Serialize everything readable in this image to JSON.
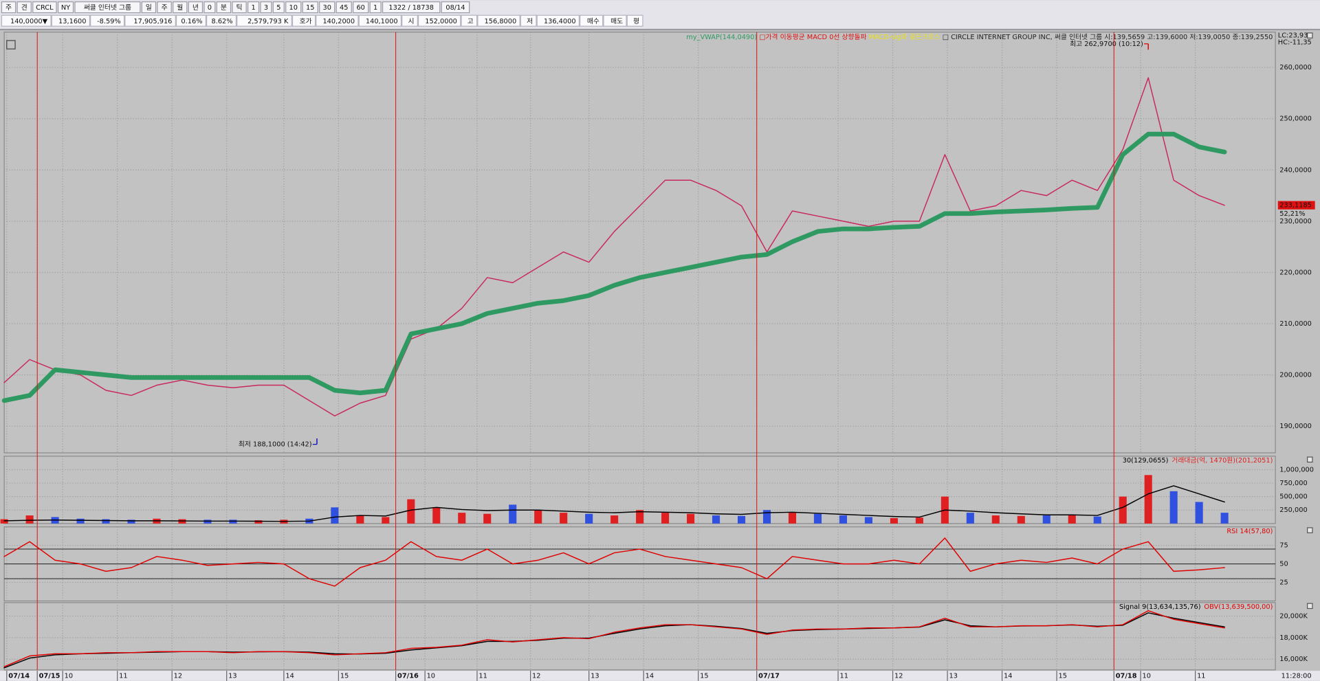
{
  "toolbar": {
    "row1": [
      "주",
      "견",
      "CRCL",
      "NY",
      "써클 인터넷 그룹",
      "일",
      "주",
      "월",
      "년",
      "0",
      "분",
      "틱",
      "1",
      "3",
      "5",
      "10",
      "15",
      "30",
      "45",
      "60",
      "1",
      "1322 / 18738",
      "08/14"
    ],
    "row2": [
      {
        "text": "140,0000▼",
        "color": "#1030d0"
      },
      {
        "text": "13,1600",
        "color": "#1030d0"
      },
      {
        "text": "-8.59%",
        "color": "#1030d0"
      },
      {
        "text": "17,905,916",
        "color": "#111111"
      },
      {
        "text": "0.16%",
        "color": "#d01010"
      },
      {
        "text": "8.62%",
        "color": "#111111"
      },
      {
        "text": "2,579,793 K",
        "color": "#111111"
      },
      {
        "text": "호가",
        "color": "#111111"
      },
      {
        "text": "140,2000",
        "color": "#1030d0"
      },
      {
        "text": "140,1000",
        "color": "#1030d0"
      },
      {
        "text": "시",
        "color": "#111111"
      },
      {
        "text": "152,0000",
        "color": "#d01010"
      },
      {
        "text": "고",
        "color": "#111111"
      },
      {
        "text": "156,8000",
        "color": "#d01010"
      },
      {
        "text": "저",
        "color": "#111111"
      },
      {
        "text": "136,4000",
        "color": "#1030d0"
      },
      {
        "text": "매수",
        "color": "#111111"
      },
      {
        "text": "매도",
        "color": "#111111"
      },
      {
        "text": "평",
        "color": "#111111"
      }
    ]
  },
  "chart_data": [
    {
      "type": "line",
      "legend": [
        {
          "text": "my_VWAP(144,0490)",
          "color": "#2e9a62"
        },
        {
          "text": " □가격 이동평균 MACD 0선 상향돌파 ",
          "color": "#e01010"
        },
        {
          "text": " MACD-sig와 골든크로스 ",
          "color": "#e8e020"
        },
        {
          "text": " □ CIRCLE INTERNET GROUP INC,  써클 인터넷 그룹 시:139,5659 고:139,6000 저:139,0050 종:139,2550",
          "color": "#222222"
        }
      ],
      "lc": "LC:23,93",
      "hc": "HC:-11,35",
      "x": [
        0,
        2,
        4,
        6,
        8,
        10,
        12,
        14,
        16,
        18,
        20,
        22,
        24,
        26,
        28,
        30,
        32,
        34,
        36,
        38,
        40,
        42,
        44,
        46,
        48,
        50,
        52,
        54,
        56,
        58,
        60,
        62,
        64,
        66,
        68,
        70,
        72,
        74,
        76,
        78,
        80,
        82,
        84,
        86,
        88,
        90,
        92,
        94,
        96
      ],
      "xlim": [
        0,
        100
      ],
      "xticks": [
        {
          "value": 0.2,
          "label": "07/14"
        },
        {
          "value": 2.6,
          "label": "07/15"
        },
        {
          "value": 4.6,
          "label": "10"
        },
        {
          "value": 8.9,
          "label": "11"
        },
        {
          "value": 13.2,
          "label": "12"
        },
        {
          "value": 17.5,
          "label": "13"
        },
        {
          "value": 22,
          "label": "14"
        },
        {
          "value": 26.3,
          "label": "15"
        },
        {
          "value": 30.8,
          "label": "07/16"
        },
        {
          "value": 33.1,
          "label": "10"
        },
        {
          "value": 37.2,
          "label": "11"
        },
        {
          "value": 41.4,
          "label": "12"
        },
        {
          "value": 46,
          "label": "13"
        },
        {
          "value": 50.3,
          "label": "14"
        },
        {
          "value": 54.6,
          "label": "15"
        },
        {
          "value": 59.2,
          "label": "07/17"
        },
        {
          "value": 65.6,
          "label": "11"
        },
        {
          "value": 69.9,
          "label": "12"
        },
        {
          "value": 74.2,
          "label": "13"
        },
        {
          "value": 78.5,
          "label": "14"
        },
        {
          "value": 82.8,
          "label": "15"
        },
        {
          "value": 87.3,
          "label": "07/18"
        },
        {
          "value": 89.4,
          "label": "10"
        },
        {
          "value": 93.7,
          "label": "11"
        }
      ],
      "ylim": [
        184.8,
        266.9
      ],
      "yticks": [
        {
          "value": 190,
          "label": "190,0000"
        },
        {
          "value": 200,
          "label": "200,0000"
        },
        {
          "value": 210,
          "label": "210,0000"
        },
        {
          "value": 220,
          "label": "220,0000"
        },
        {
          "value": 230,
          "label": "230,0000"
        },
        {
          "value": 240,
          "label": "240,0000"
        },
        {
          "value": 250,
          "label": "250,0000"
        },
        {
          "value": 260,
          "label": "260,0000"
        }
      ],
      "grid": true,
      "series": [
        {
          "color": "#c8285a",
          "values": [
            198.5,
            203,
            201,
            200,
            197,
            196,
            198,
            199,
            198,
            197.5,
            198,
            198,
            195,
            192,
            194.5,
            196,
            207,
            209,
            213,
            219,
            218,
            221,
            224,
            222,
            228,
            233,
            238,
            238,
            236,
            233,
            224,
            232,
            231,
            230,
            229,
            230,
            230,
            243,
            232,
            233,
            236,
            235,
            238,
            236,
            244,
            258,
            238,
            235,
            233.1
          ]
        },
        {
          "color": "#2e9a62",
          "values": [
            195,
            196,
            201,
            200.5,
            200,
            199.5,
            199.5,
            199.5,
            199.5,
            199.5,
            199.5,
            199.5,
            199.5,
            197,
            196.5,
            197,
            208,
            209,
            210,
            212,
            213,
            214,
            214.5,
            215.5,
            217.5,
            219,
            220,
            221,
            222,
            223,
            223.5,
            226,
            228,
            228.5,
            228.5,
            228.8,
            229,
            231.5,
            231.5,
            231.8,
            232,
            232.2,
            232.5,
            232.7,
            243,
            247,
            247,
            244.5,
            243.5
          ]
        }
      ],
      "annotations": [
        {
          "text": "최고 262,9700 (10:12)",
          "x": 90,
          "y": 262.97,
          "color": "#e00000"
        },
        {
          "text": "최저 188,1000 (14:42)",
          "x": 24.6,
          "y": 188.1,
          "color": "#1010c0"
        }
      ],
      "last_price": {
        "value": 233.1185,
        "label": "233,1185"
      },
      "last_change": "52,21%",
      "time_label": "11:28:00"
    },
    {
      "type": "bar",
      "up_color": "#e02020",
      "down_color": "#3050e0",
      "ylim": [
        0,
        1250000
      ],
      "yticks": [
        {
          "value": 250000,
          "label": "250,000"
        },
        {
          "value": 500000,
          "label": "500,000"
        },
        {
          "value": 750000,
          "label": "750,000"
        },
        {
          "value": 1000000,
          "label": "1,000,000"
        }
      ],
      "grid": true,
      "series": [
        {
          "name": "30(129,0655)",
          "type": "line",
          "color": "#000000",
          "values": [
            50000,
            60000,
            65000,
            60000,
            55000,
            50000,
            50000,
            48000,
            45000,
            45000,
            42000,
            40000,
            45000,
            120000,
            150000,
            140000,
            250000,
            300000,
            260000,
            240000,
            250000,
            250000,
            230000,
            210000,
            200000,
            220000,
            210000,
            200000,
            180000,
            170000,
            200000,
            210000,
            190000,
            170000,
            150000,
            130000,
            120000,
            250000,
            230000,
            200000,
            180000,
            160000,
            160000,
            150000,
            300000,
            550000,
            700000,
            550000,
            400000
          ]
        },
        {
          "name": "거래대금(억, 1470원)(201,2051)",
          "type": "bar",
          "color": "#e02020",
          "values": [
            80000,
            150000,
            120000,
            90000,
            80000,
            70000,
            90000,
            80000,
            70000,
            70000,
            60000,
            70000,
            90000,
            300000,
            150000,
            120000,
            450000,
            300000,
            200000,
            180000,
            350000,
            250000,
            200000,
            180000,
            150000,
            250000,
            200000,
            180000,
            150000,
            140000,
            250000,
            200000,
            180000,
            150000,
            120000,
            100000,
            110000,
            500000,
            200000,
            150000,
            140000,
            150000,
            160000,
            130000,
            500000,
            900000,
            600000,
            400000,
            200000
          ]
        }
      ]
    },
    {
      "type": "line",
      "ylim": [
        0,
        100
      ],
      "yticks": [
        25,
        50,
        75
      ],
      "levels": [
        70,
        50,
        30
      ],
      "grid": true,
      "series": [
        {
          "name": "RSI 14(57,80)",
          "color": "#e00000",
          "values": [
            60,
            80,
            55,
            50,
            40,
            45,
            60,
            55,
            48,
            50,
            52,
            50,
            30,
            20,
            45,
            55,
            80,
            60,
            55,
            70,
            50,
            55,
            65,
            50,
            65,
            70,
            60,
            55,
            50,
            45,
            30,
            60,
            55,
            50,
            50,
            55,
            50,
            85,
            40,
            50,
            55,
            52,
            58,
            50,
            70,
            80,
            40,
            42,
            45
          ]
        }
      ]
    },
    {
      "type": "line",
      "ylim": [
        15000,
        21250
      ],
      "yticks": [
        {
          "value": 16000,
          "label": "16,000K"
        },
        {
          "value": 18000,
          "label": "18,000K"
        },
        {
          "value": 20000,
          "label": "20,000K"
        }
      ],
      "grid": true,
      "series": [
        {
          "name": "Signal 9(13,634,135,76)",
          "color": "#000000",
          "values": [
            15200,
            16100,
            16400,
            16500,
            16550,
            16600,
            16650,
            16700,
            16700,
            16650,
            16680,
            16700,
            16650,
            16500,
            16480,
            16550,
            16850,
            17050,
            17250,
            17650,
            17650,
            17750,
            17950,
            17950,
            18400,
            18800,
            19100,
            19200,
            19050,
            18850,
            18400,
            18650,
            18750,
            18800,
            18850,
            18900,
            18980,
            19650,
            19100,
            19000,
            19080,
            19100,
            19180,
            19050,
            19150,
            20300,
            19800,
            19400,
            19000
          ]
        },
        {
          "name": "OBV(13,639,500,00)",
          "color": "#e00000",
          "values": [
            15300,
            16300,
            16500,
            16500,
            16600,
            16600,
            16700,
            16700,
            16700,
            16600,
            16700,
            16700,
            16600,
            16400,
            16500,
            16600,
            17000,
            17100,
            17300,
            17800,
            17600,
            17800,
            18000,
            17900,
            18500,
            18900,
            19200,
            19200,
            19000,
            18800,
            18300,
            18700,
            18800,
            18800,
            18900,
            18900,
            19000,
            19800,
            19000,
            19000,
            19100,
            19100,
            19200,
            19000,
            19200,
            20500,
            19700,
            19300,
            18900
          ]
        }
      ]
    }
  ]
}
